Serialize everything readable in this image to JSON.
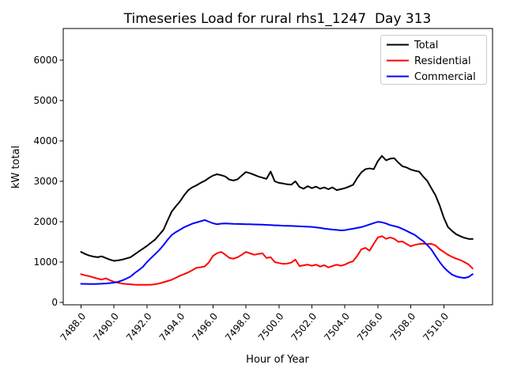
{
  "chart_data": {
    "type": "line",
    "title": "Timeseries Load for rural rhs1_1247  Day 313",
    "xlabel": "Hour of Year",
    "ylabel": "kW total",
    "grid": false,
    "legend_position": "upper right",
    "background_color": "#ffffff",
    "axis_color": "#000000",
    "legend_border_color": "#cccccc",
    "xlim": [
      7486.92,
      7512.96
    ],
    "ylim": [
      -59,
      6784
    ],
    "x_ticks": [
      7488,
      7490,
      7492,
      7494,
      7496,
      7498,
      7500,
      7502,
      7504,
      7506,
      7508,
      7510
    ],
    "x_tick_decimals": 1,
    "y_ticks": [
      0,
      1000,
      2000,
      3000,
      4000,
      5000,
      6000
    ],
    "x_start": 7488.0,
    "x_step": 0.25,
    "series": [
      {
        "name": "Total",
        "color": "#000000",
        "values": [
          1250,
          1200,
          1160,
          1135,
          1120,
          1140,
          1100,
          1060,
          1030,
          1040,
          1060,
          1090,
          1120,
          1190,
          1260,
          1330,
          1400,
          1480,
          1560,
          1680,
          1800,
          2030,
          2250,
          2380,
          2500,
          2650,
          2780,
          2850,
          2900,
          2960,
          3010,
          3080,
          3140,
          3175,
          3150,
          3120,
          3040,
          3020,
          3050,
          3140,
          3230,
          3200,
          3160,
          3120,
          3090,
          3060,
          3240,
          3000,
          2960,
          2945,
          2925,
          2915,
          3000,
          2860,
          2816,
          2881,
          2829,
          2868,
          2816,
          2848,
          2803,
          2848,
          2783,
          2803,
          2829,
          2868,
          2914,
          3080,
          3220,
          3300,
          3320,
          3300,
          3500,
          3630,
          3520,
          3560,
          3570,
          3460,
          3370,
          3340,
          3290,
          3260,
          3240,
          3120,
          3010,
          2830,
          2650,
          2400,
          2100,
          1870,
          1770,
          1690,
          1640,
          1600,
          1575,
          1570
        ]
      },
      {
        "name": "Residential",
        "color": "#ff0000",
        "values": [
          700,
          670,
          650,
          620,
          590,
          565,
          595,
          550,
          510,
          487,
          465,
          455,
          448,
          440,
          435,
          435,
          435,
          440,
          450,
          470,
          500,
          530,
          560,
          610,
          660,
          700,
          745,
          800,
          856,
          870,
          890,
          990,
          1150,
          1220,
          1250,
          1180,
          1100,
          1085,
          1120,
          1180,
          1250,
          1215,
          1180,
          1200,
          1215,
          1100,
          1120,
          1000,
          974,
          955,
          960,
          986,
          1060,
          900,
          920,
          935,
          908,
          935,
          888,
          921,
          868,
          900,
          935,
          908,
          935,
          986,
          1019,
          1150,
          1313,
          1350,
          1280,
          1450,
          1610,
          1640,
          1575,
          1610,
          1575,
          1500,
          1510,
          1445,
          1390,
          1425,
          1445,
          1455,
          1445,
          1450,
          1410,
          1315,
          1250,
          1180,
          1130,
          1085,
          1050,
          1000,
          940,
          840
        ]
      },
      {
        "name": "Commercial",
        "color": "#0000ff",
        "values": [
          460,
          458,
          455,
          455,
          458,
          462,
          468,
          478,
          490,
          510,
          545,
          590,
          640,
          725,
          800,
          880,
          1000,
          1100,
          1200,
          1300,
          1420,
          1550,
          1670,
          1740,
          1800,
          1860,
          1905,
          1950,
          1980,
          2010,
          2040,
          2000,
          1960,
          1935,
          1950,
          1955,
          1950,
          1945,
          1943,
          1940,
          1938,
          1935,
          1932,
          1930,
          1925,
          1920,
          1915,
          1910,
          1905,
          1900,
          1897,
          1893,
          1890,
          1885,
          1880,
          1875,
          1870,
          1858,
          1845,
          1830,
          1815,
          1803,
          1795,
          1785,
          1790,
          1810,
          1825,
          1845,
          1865,
          1895,
          1930,
          1965,
          1995,
          1985,
          1955,
          1915,
          1890,
          1865,
          1820,
          1770,
          1720,
          1670,
          1590,
          1520,
          1420,
          1310,
          1150,
          1000,
          870,
          770,
          690,
          645,
          620,
          605,
          630,
          700
        ]
      }
    ]
  }
}
